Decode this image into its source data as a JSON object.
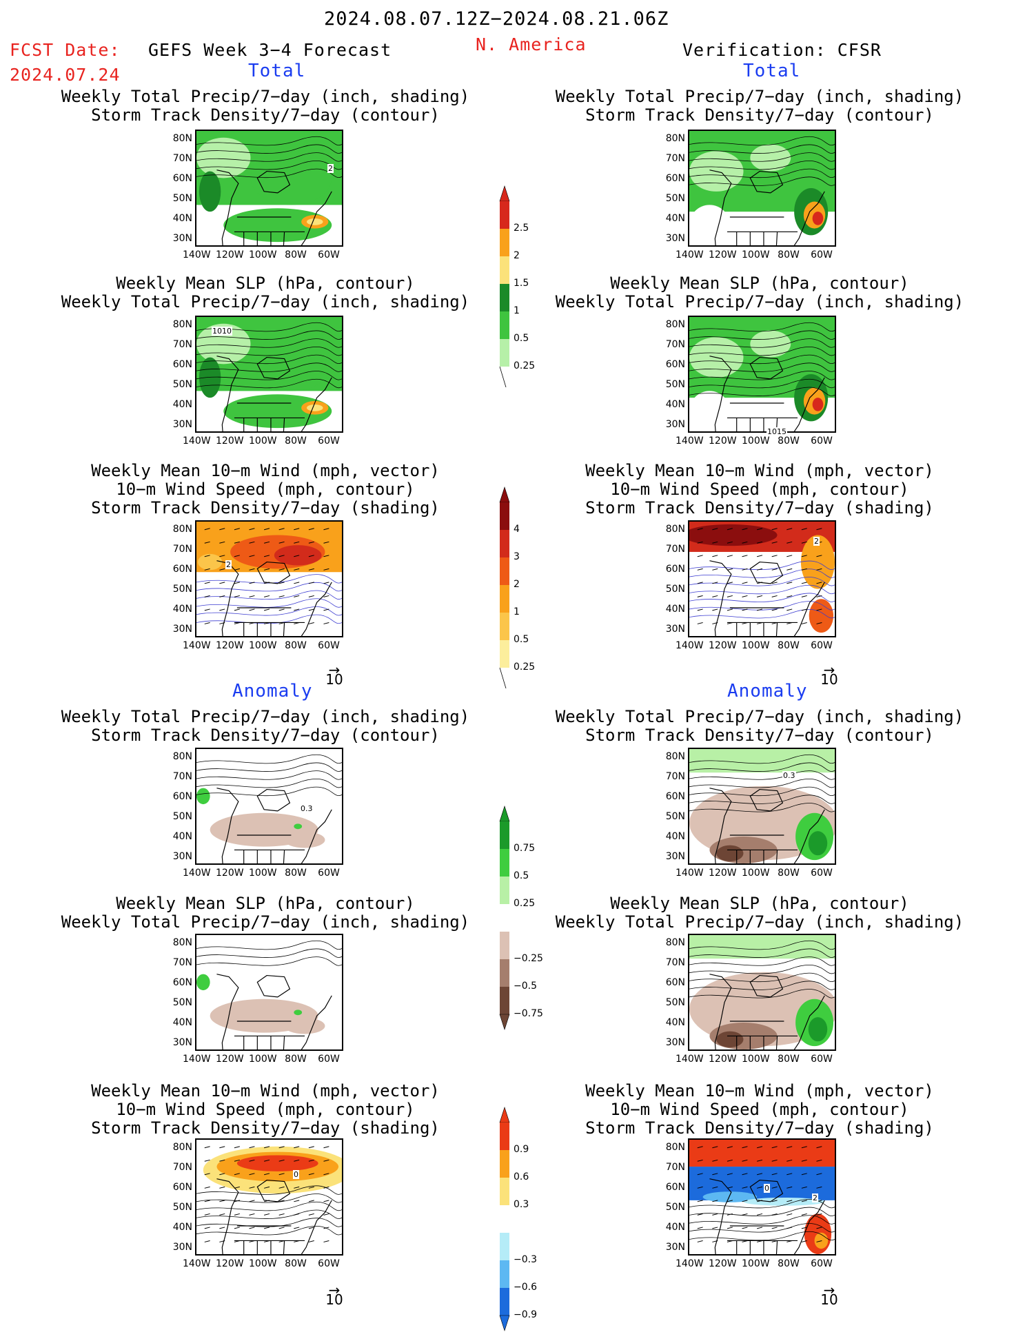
{
  "header": {
    "date_range": "2024.08.07.12Z−2024.08.21.06Z",
    "fcst_label": "FCST Date:",
    "fcst_date": "2024.07.24",
    "forecast_title": "GEFS Week 3−4 Forecast",
    "region": "N. America",
    "verification": "Verification: CFSR"
  },
  "sections": {
    "total": "Total",
    "anomaly": "Anomaly"
  },
  "panel_titles": {
    "precip_storm": [
      "Weekly Total Precip/7−day (inch, shading)",
      "Storm Track Density/7−day (contour)"
    ],
    "slp_precip": [
      "Weekly Mean SLP (hPa, contour)",
      "Weekly Total Precip/7−day (inch, shading)"
    ],
    "wind_storm": [
      "Weekly Mean 10−m Wind (mph, vector)",
      "10−m Wind Speed (mph, contour)",
      "Storm Track Density/7−day (shading)"
    ]
  },
  "axes": {
    "lat_labels": [
      "80N",
      "70N",
      "60N",
      "50N",
      "40N",
      "30N"
    ],
    "lon_labels": [
      "140W",
      "120W",
      "100W",
      "80W",
      "60W"
    ]
  },
  "vector_scale": "10",
  "map_contour_labels": {
    "gefs_total_precip": "2",
    "gefs_total_slp": "1010",
    "cfsr_total_slp": "1015",
    "gefs_total_wind": "2",
    "cfsr_total_wind": "2",
    "gefs_anom_precip": "0.3",
    "cfsr_anom_precip": "0.3",
    "gefs_anom_wind": "0",
    "cfsr_anom_wind_a": "0",
    "cfsr_anom_wind_b": "2"
  },
  "colorbars": {
    "precip_total": {
      "labels": [
        "2.5",
        "2",
        "1.5",
        "1",
        "0.5",
        "0.25"
      ],
      "colors": [
        "#d7281c",
        "#f9a11b",
        "#fbe27a",
        "#1b8a28",
        "#3fc43f",
        "#b6f0a8"
      ]
    },
    "storm_total": {
      "labels": [
        "4",
        "3",
        "2",
        "1",
        "0.5",
        "0.25"
      ],
      "colors": [
        "#8b0e0e",
        "#d22b1b",
        "#ee5a16",
        "#f9a11b",
        "#fbc54a",
        "#fcee9c"
      ]
    },
    "precip_anom": {
      "labels": [
        "0.75",
        "0.5",
        "0.25",
        "−0.25",
        "−0.5",
        "−0.75"
      ],
      "colors": [
        "#1b9a2a",
        "#3fcd3f",
        "#b8f0a6",
        "#ffffff",
        "#dcc1b4",
        "#a57e6d",
        "#6d4535"
      ]
    },
    "storm_anom": {
      "labels": [
        "0.9",
        "0.6",
        "0.3",
        "−0.3",
        "−0.6",
        "−0.9"
      ],
      "colors": [
        "#ea3b16",
        "#f9a11b",
        "#fbe27a",
        "#ffffff",
        "#b5ecf7",
        "#5db8f2",
        "#1c6bdc"
      ]
    }
  }
}
